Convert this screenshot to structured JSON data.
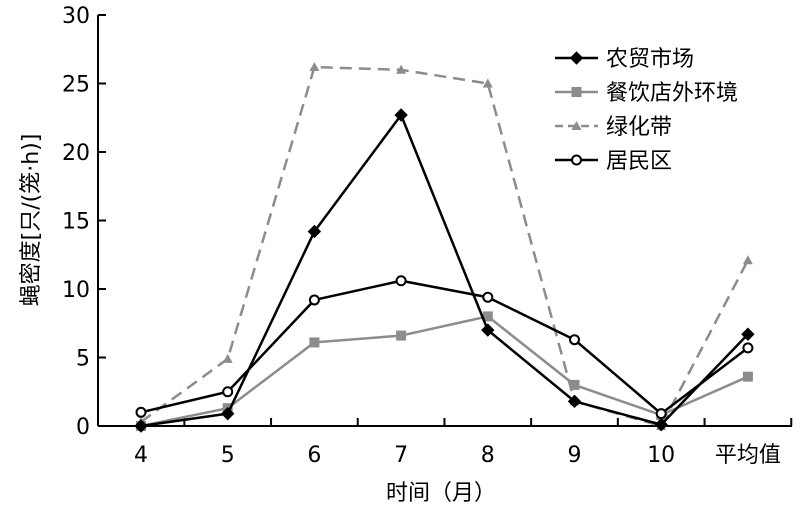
{
  "chart_data": {
    "type": "line",
    "title": "",
    "xlabel": "时间（月）",
    "ylabel": "蝇密度[只/(笼·h)]",
    "categories": [
      "4",
      "5",
      "6",
      "7",
      "8",
      "9",
      "10",
      "平均值"
    ],
    "ylim": [
      0,
      30
    ],
    "yticks": [
      0,
      5,
      10,
      15,
      20,
      25,
      30
    ],
    "grid": false,
    "legend_position": "top-right",
    "series": [
      {
        "name": "农贸市场",
        "color": "#000000",
        "dash": "solid",
        "marker": "diamond-filled",
        "values": [
          0.0,
          0.9,
          14.2,
          22.7,
          7.0,
          1.8,
          0.1,
          6.7
        ]
      },
      {
        "name": "餐饮店外环境",
        "color": "#8c8c8c",
        "dash": "solid",
        "marker": "square-filled",
        "values": [
          0.0,
          1.3,
          6.1,
          6.6,
          8.0,
          3.0,
          0.8,
          3.6
        ]
      },
      {
        "name": "绿化带",
        "color": "#8c8c8c",
        "dash": "dashed",
        "marker": "triangle-filled",
        "values": [
          0.3,
          4.9,
          26.2,
          26.0,
          25.0,
          1.8,
          0.0,
          12.1
        ]
      },
      {
        "name": "居民区",
        "color": "#000000",
        "dash": "solid",
        "marker": "circle-open",
        "values": [
          1.0,
          2.5,
          9.2,
          10.6,
          9.4,
          6.3,
          0.9,
          5.7
        ]
      }
    ]
  }
}
